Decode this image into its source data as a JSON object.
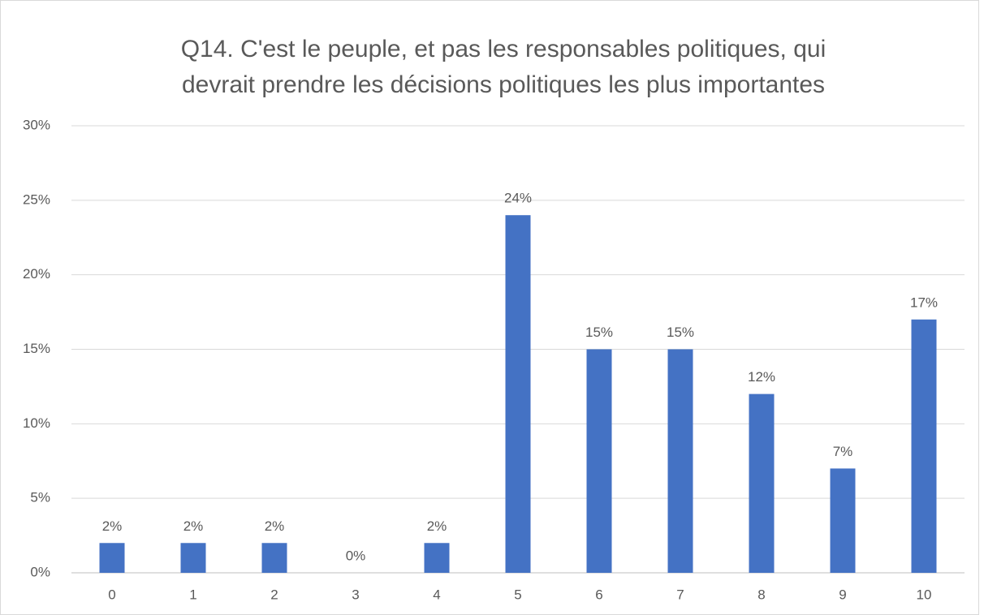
{
  "chart_data": {
    "type": "bar",
    "title": [
      "Q14. C'est le peuple, et pas les responsables politiques, qui",
      "devrait prendre les décisions politiques les plus importantes"
    ],
    "categories": [
      "0",
      "1",
      "2",
      "3",
      "4",
      "5",
      "6",
      "7",
      "8",
      "9",
      "10"
    ],
    "values": [
      2,
      2,
      2,
      0,
      2,
      24,
      15,
      15,
      12,
      7,
      17
    ],
    "value_labels": [
      "2%",
      "2%",
      "2%",
      "0%",
      "2%",
      "24%",
      "15%",
      "15%",
      "12%",
      "7%",
      "17%"
    ],
    "color": "#4472c4",
    "ylim": [
      0,
      30
    ],
    "yticks": [
      {
        "value": 0,
        "label": "0%"
      },
      {
        "value": 5,
        "label": "5%"
      },
      {
        "value": 10,
        "label": "10%"
      },
      {
        "value": 15,
        "label": "15%"
      },
      {
        "value": 20,
        "label": "20%"
      },
      {
        "value": 25,
        "label": "25%"
      },
      {
        "value": 30,
        "label": "30%"
      }
    ],
    "grid": true
  }
}
